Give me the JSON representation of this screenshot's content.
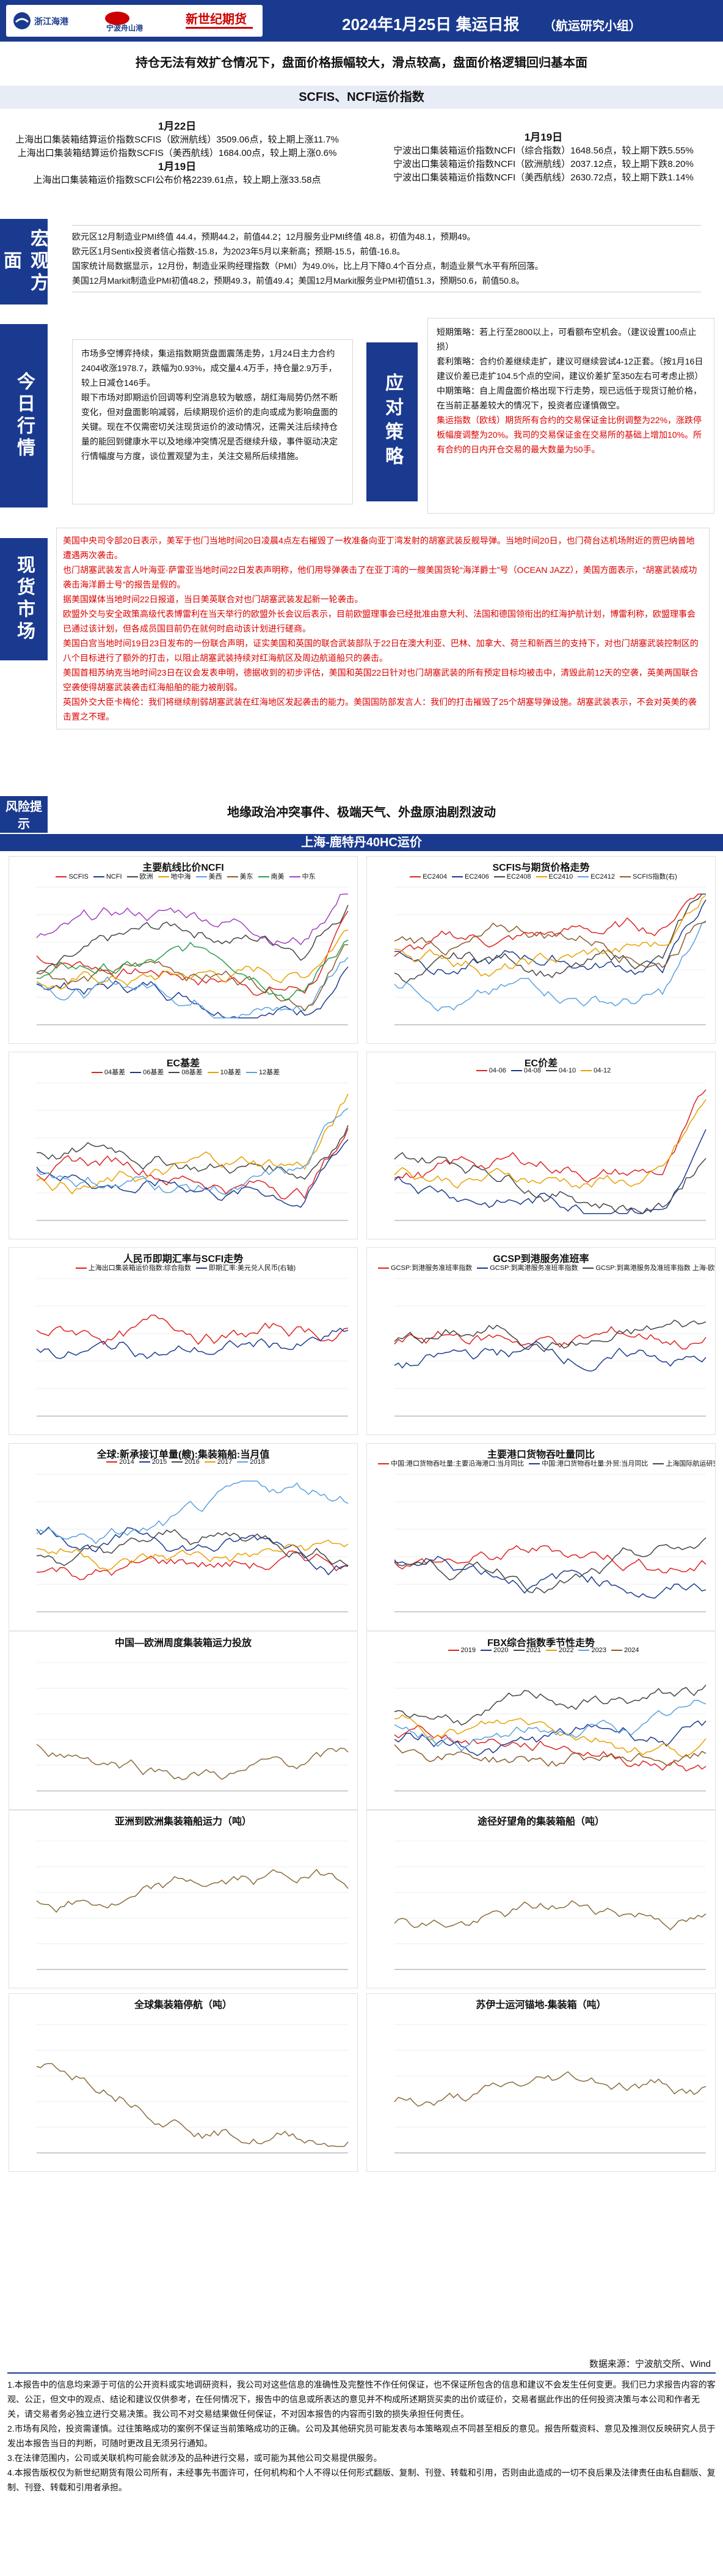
{
  "header": {
    "logos": [
      "浙江海港",
      "宁波舟山港",
      "新世纪期货"
    ],
    "title": "2024年1月25日 集运日报",
    "team": "（航运研究小组）",
    "headline": "持仓无法有效扩仓情况下，盘面价格振幅较大，滑点较高，盘面价格逻辑回归基本面",
    "index_band": "SCFIS、NCFI运价指数"
  },
  "index": {
    "left_date1": "1月22日",
    "left_l1": "上海出口集装箱结算运价指数SCFIS（欧洲航线）3509.06点，较上期上涨11.7%",
    "left_l2": "上海出口集装箱结算运价指数SCFIS（美西航线）1684.00点，较上期上涨0.6%",
    "left_date2": "1月19日",
    "left_l3": "上海出口集装箱运价指数SCFI公布价格2239.61点，较上期上涨33.58点",
    "right_date": "1月19日",
    "right_l1": "宁波出口集装箱运价指数NCFI（综合指数）1648.56点，较上期下跌5.55%",
    "right_l2": "宁波出口集装箱运价指数NCFI（欧洲航线）2037.12点，较上期下跌8.20%",
    "right_l3": "宁波出口集装箱运价指数NCFI（美西航线）2630.72点，较上期下跌1.14%"
  },
  "sections": {
    "macro_label": "宏观方面",
    "today_label": "今日行情",
    "strategy_label": "应对策略",
    "news_label": "现货市场",
    "risk_label": "风险提示"
  },
  "macro": [
    "欧元区12月制造业PMI终值 44.4，预期44.2，前值44.2；12月服务业PMI终值 48.8，初值为48.1，预期49。",
    "欧元区1月Sentix投资者信心指数-15.8，为2023年5月以来新高；预期-15.5，前值-16.8。",
    "国家统计局数据显示，12月份，制造业采购经理指数（PMI）为49.0%，比上月下降0.4个百分点，制造业景气水平有所回落。",
    "美国12月Markit制造业PMI初值48.2，预期49.3，前值49.4；美国12月Markit服务业PMI初值51.3，预期50.6，前值50.8。"
  ],
  "today": [
    "市场多空博弈持续，集运指数期货盘面震荡走势，1月24日主力合约2404收涨1978.7，跌幅为0.93%，成交量4.4万手，持仓量2.9万手，较上日减仓146手。",
    "眼下市场对即期运价回调等利空消息较为敏感，胡红海局势仍然不断变化，但对盘面影响减弱，后续期现价运价的走向或成为影响盘面的关键。现在不仅需密切关注现货运价的波动情况，还需关注后续持仓量的能回到健康水平以及地缘冲突情况是否继续升级，事件驱动决定行情幅度与方度，谈位置观望为主，关注交易所后续措施。"
  ],
  "strategy": [
    "短期策略：若上行至2800以上，可看额布空机会。（建议设置100点止损）",
    "套利策略：合约价差继续走扩，建议可继续尝试4-12正套。（按1月16日建议价差已走扩104.5个点的空间，建议价差扩至350左右可考虑止损）",
    "中期策略：自上周盘面价格出现下行走势，现已远低于现货订舱价格，在当前正基差较大的情况下，投资者应谨慎做空。"
  ],
  "strategy_red": "集运指数（欧线）期货所有合约的交易保证金比例调整为22%，涨跌停板幅度调整为20%。我司的交易保证金在交易所的基础上增加10%。所有合约的日内开仓交易的最大数量为50手。",
  "news": [
    "美国中央司令部20日表示，美军于也门当地时间20日凌晨4点左右摧毁了一枚准备向亚丁湾发射的胡塞武装反舰导弹。当地时间20日，也门荷台达机场附近的贾巴纳普地遭遇两次袭击。",
    "也门胡塞武装发言人叶海亚·萨雷亚当地时间22日发表声明称，他们用导弹袭击了在亚丁湾的一艘美国货轮“海洋爵士”号（OCEAN JAZZ），美国方面表示，“胡塞武装成功袭击海洋爵士号”的报告是假的。",
    "据美国媒体当地时间22日报道，当日美英联合对也门胡塞武装发起新一轮袭击。",
    "欧盟外交与安全政策高级代表博雷利在当天举行的欧盟外长会议后表示，目前欧盟理事会已经批准由意大利、法国和德国领衔出的红海护航计划，博雷利称，欧盟理事会已通过该计划，但各成员国目前仍在就何时启动该计划进行磋商。",
    "美国白宫当地时间19日23日发布的一份联合声明，证实美国和英国的联合武装部队于22日在澳大利亚、巴林、加拿大、荷兰和新西兰的支持下，对也门胡塞武装控制区的八个目标进行了额外的打击，以阻止胡塞武装持续对红海航区及周边航道船只的袭击。",
    "美国首相苏纳克当地时间23日在议会发表申明，德据收到的初步评估，美国和英国22日针对也门胡塞武装的所有预定目标均被击中，清毁此前12天的空袭，英美两国联合空袭使得胡塞武装袭击红海船舶的能力被削弱。",
    "英国外交大臣卡梅伦：我们将继续削弱胡塞武装在红海地区发起袭击的能力。美国国防部发言人：我们的打击摧毁了25个胡塞导弹设施。胡塞武装表示，不会对英美的袭击置之不理。"
  ],
  "risk": "地缘政治冲突事件、极端天气、外盘原油剧烈波动",
  "route_band": "上海-鹿特丹40HC运价",
  "charts": {
    "c1": {
      "title": "主要航线比价NCFI",
      "legend": [
        "SCFIS",
        "NCFI",
        "欧洲",
        "地中海",
        "美西",
        "美东",
        "南美",
        "中东"
      ]
    },
    "c2": {
      "title": "SCFIS与期货价格走势",
      "legend": [
        "EC2404",
        "EC2406",
        "EC2408",
        "EC2410",
        "EC2412",
        "SCFIS指数(右)"
      ]
    },
    "c3": {
      "title": "EC基差",
      "legend": [
        "04基差",
        "06基差",
        "08基差",
        "10基差",
        "12基差"
      ]
    },
    "c4": {
      "title": "EC价差",
      "legend": [
        "04-06",
        "04-08",
        "04-10",
        "04-12"
      ]
    },
    "c5": {
      "title": "人民币即期汇率与SCFI走势",
      "legend": [
        "上海出口集装箱运价指数:综合指数",
        "即期汇率:美元兑人民币(右轴)"
      ]
    },
    "c6": {
      "title": "GCSP到港服务准班率",
      "legend": [
        "GCSP:到港服务准班率指数",
        "GCSP:到离港服务准班率指数",
        "GCSP:到离港服务及准班率指数 上海-欧洲"
      ]
    },
    "c7": {
      "title": "全球:新承接订单量(艘):集装箱船:当月值",
      "legend": [
        "2014",
        "2015",
        "2016",
        "2017",
        "2018"
      ]
    },
    "c8": {
      "title": "主要港口货物吞吐量同比",
      "legend": [
        "中国:港口货物吞吐量:主要沿海港口:当月同比",
        "中国:港口货物吞吐量:外贸:当月同比",
        "上海国际航运研究中心:港口吞吐量:上海:当月同比"
      ]
    },
    "c9": {
      "title": "中国—欧洲周度集装箱运力投放",
      "legend": []
    },
    "c10": {
      "title": "FBX综合指数季节性走势",
      "legend": [
        "2019",
        "2020",
        "2021",
        "2022",
        "2023",
        "2024"
      ]
    },
    "c11": {
      "title": "亚洲到欧洲集装箱船运力（吨）",
      "legend": []
    },
    "c12": {
      "title": "途径好望角的集装箱船（吨）",
      "legend": []
    },
    "c13": {
      "title": "全球集装箱停航（吨）",
      "legend": []
    },
    "c14": {
      "title": "苏伊士运河锚地-集装箱（吨）",
      "legend": []
    }
  },
  "source": "数据来源：宁波航交所、Wind",
  "disclaimer": [
    "1.本报告中的信息均来源于可信的公开资料或实地调研资料，我公司对这些信息的准确性及完整性不作任何保证，也不保证所包含的信息和建议不会发生任何变更。我们已力求报告内容的客观、公正，但文中的观点、结论和建议仅供参考，在任何情况下，报告中的信息或所表达的意见并不构成所述期货买卖的出价或征价，交易者据此作出的任何投资决策与本公司和作者无关，请交易者务必独立进行交易决策。我公司不对交易结果做任何保证，不对因本报告的内容而引致的损失承担任何责任。",
    "2.市场有风险，投资需谨慎。过往策略成功的案例不保证当前策略成功的正确。公司及其他研究员可能发表与本策略观点不同甚至相反的意见。报告所载资料、意见及推测仅反映研究人员于发出本报告当日的判断，可随时更改且无须另行通知。",
    "3.在法律范围内，公司或关联机构可能会就涉及的品种进行交易，或可能为其他公司交易提供服务。",
    "4.本报告版权仅为新世纪期货有限公司所有，未经事先书面许可，任何机构和个人不得以任何形式翻版、复制、刊登、转载和引用，否则由此造成的一切不良后果及法律责任由私自翻版、复制、刊登、转载和引用者承担。"
  ]
}
